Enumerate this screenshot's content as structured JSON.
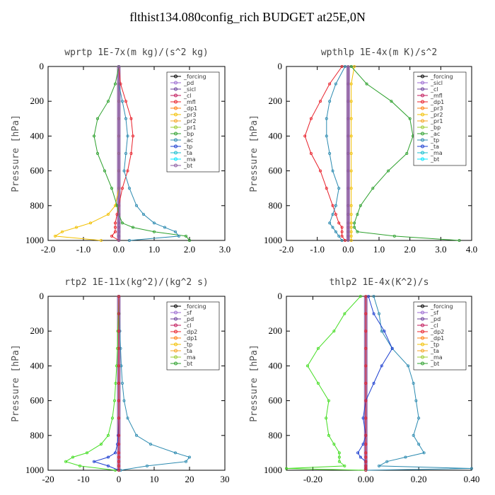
{
  "page": {
    "title": "flthist134.080config_rich  BUDGET at25E,0N"
  },
  "chart_data": [
    {
      "type": "line",
      "title": "wprtp  1E-7x(m kg)/(s^2 kg)",
      "ylabel": "Pressure [hPa]",
      "xlim": [
        -2.0,
        3.0
      ],
      "ylim": [
        1000,
        0
      ],
      "xticks": [
        "-2.0",
        "-1.0",
        "0.0",
        "1.0",
        "2.0",
        "3.0"
      ],
      "yticks": [
        "0",
        "200",
        "400",
        "600",
        "800",
        "1000"
      ],
      "legend": [
        "_forcing",
        "_pd",
        "_sicl",
        "_cl",
        "_mfl",
        "_dp1",
        "_pr3",
        "_pr2",
        "_pr1",
        "_bp",
        "_ac",
        "_tp",
        "_ta",
        "_ma",
        "_bt"
      ],
      "pressure": [
        0,
        100,
        200,
        300,
        400,
        500,
        600,
        700,
        800,
        850,
        900,
        925,
        950,
        975,
        1000
      ],
      "series": [
        {
          "name": "_dp1",
          "color": "#e8202a",
          "values": [
            0.0,
            0.05,
            0.2,
            0.35,
            0.4,
            0.35,
            0.25,
            0.1,
            0.0,
            -0.05,
            -0.1,
            -0.1,
            -0.1,
            -0.2,
            0.0
          ]
        },
        {
          "name": "_pr1",
          "color": "#f2c000",
          "values": [
            0.0,
            0.0,
            0.0,
            0.0,
            0.0,
            0.0,
            0.0,
            0.0,
            -0.1,
            -0.3,
            -0.8,
            -1.2,
            -1.6,
            -1.8,
            -0.5
          ]
        },
        {
          "name": "_ac",
          "color": "#2ca02c",
          "values": [
            0.0,
            -0.1,
            -0.3,
            -0.6,
            -0.7,
            -0.6,
            -0.4,
            -0.2,
            -0.05,
            0.0,
            0.1,
            0.4,
            1.0,
            1.9,
            2.0
          ]
        },
        {
          "name": "_tp",
          "color": "#2b8ab0",
          "values": [
            0.0,
            0.0,
            0.1,
            0.2,
            0.25,
            0.2,
            0.15,
            0.3,
            0.5,
            0.7,
            1.0,
            1.3,
            1.6,
            1.7,
            0.3
          ]
        },
        {
          "name": "_bt",
          "color": "#8b5aa0",
          "values": [
            0,
            0,
            0,
            0,
            0,
            0,
            0,
            0,
            0,
            0,
            0,
            0,
            0,
            0,
            0
          ]
        }
      ]
    },
    {
      "type": "line",
      "title": "wpthlp  1E-4x(m K)/s^2",
      "ylabel": "Pressure [hPa]",
      "xlim": [
        -2.0,
        4.0
      ],
      "ylim": [
        1000,
        0
      ],
      "xticks": [
        "-2.0",
        "-1.0",
        "0.0",
        "1.0",
        "2.0",
        "3.0",
        "4.0"
      ],
      "yticks": [
        "0",
        "200",
        "400",
        "600",
        "800",
        "1000"
      ],
      "legend": [
        "_forcing",
        "_sicl",
        "_cl",
        "_mfl",
        "_dp1",
        "_pr3",
        "_pr2",
        "_pr1",
        "_bp",
        "_ac",
        "_tp",
        "_ta",
        "_ma",
        "_bt"
      ],
      "pressure": [
        0,
        100,
        200,
        300,
        400,
        500,
        600,
        700,
        800,
        850,
        900,
        925,
        950,
        975,
        1000
      ],
      "series": [
        {
          "name": "_dp1",
          "color": "#e8202a",
          "values": [
            -0.2,
            -0.6,
            -0.9,
            -1.2,
            -1.4,
            -1.2,
            -0.9,
            -0.7,
            -0.5,
            -0.4,
            -0.3,
            -0.2,
            -0.2,
            -0.2,
            -0.1
          ]
        },
        {
          "name": "_pr1",
          "color": "#f2c000",
          "values": [
            0.2,
            0.1,
            0.1,
            0.1,
            0.1,
            0.1,
            0.1,
            0.1,
            0.1,
            0.1,
            0.1,
            0.1,
            0.1,
            0.1,
            0.1
          ]
        },
        {
          "name": "_ac",
          "color": "#2ca02c",
          "values": [
            0.1,
            0.6,
            1.4,
            2.0,
            2.1,
            1.9,
            1.3,
            0.8,
            0.4,
            0.3,
            0.2,
            0.2,
            0.3,
            1.5,
            3.6
          ]
        },
        {
          "name": "_tp",
          "color": "#2b8ab0",
          "values": [
            -0.1,
            -0.4,
            -0.6,
            -0.7,
            -0.7,
            -0.6,
            -0.5,
            -0.3,
            -0.4,
            -0.5,
            -0.6,
            -0.5,
            -0.4,
            -0.3,
            -0.2
          ]
        },
        {
          "name": "_bt",
          "color": "#8b5aa0",
          "values": [
            0,
            0,
            0,
            0,
            0,
            0,
            0,
            0,
            0,
            0,
            0,
            0,
            0,
            0,
            0
          ]
        }
      ]
    },
    {
      "type": "line",
      "title": "rtp2  1E-11x(kg^2)/(kg^2 s)",
      "ylabel": "Pressure [hPa]",
      "xlim": [
        -20,
        30
      ],
      "ylim": [
        1000,
        0
      ],
      "xticks": [
        "-20",
        "-10",
        "0",
        "10",
        "20",
        "30"
      ],
      "yticks": [
        "0",
        "200",
        "400",
        "600",
        "800",
        "1000"
      ],
      "legend": [
        "_forcing",
        "_sf",
        "_pd",
        "_cl",
        "_dp2",
        "_dp1",
        "_tp",
        "_ta",
        "_ma",
        "_bt"
      ],
      "pressure": [
        0,
        100,
        200,
        300,
        400,
        500,
        600,
        700,
        800,
        850,
        900,
        925,
        950,
        975,
        1000
      ],
      "series": [
        {
          "name": "_dp1",
          "color": "#44dd22",
          "values": [
            0,
            -0.1,
            -0.3,
            -0.4,
            -0.6,
            -0.9,
            -1.2,
            -1.8,
            -3.0,
            -5.0,
            -9.0,
            -13.0,
            -15.0,
            -11.0,
            -1.0
          ]
        },
        {
          "name": "_tp",
          "color": "#2b8ab0",
          "values": [
            0,
            0.1,
            0.3,
            0.5,
            0.7,
            1.0,
            1.5,
            2.5,
            5.0,
            9.0,
            16.0,
            20.0,
            19.0,
            8.0,
            0.5
          ]
        },
        {
          "name": "_ta",
          "color": "#1d3fd0",
          "values": [
            0,
            0,
            0,
            0,
            0,
            0,
            0,
            0,
            -0.2,
            -0.4,
            -1.0,
            -3.0,
            -7.0,
            -3.0,
            0
          ]
        },
        {
          "name": "_forcing",
          "color": "#e8202a",
          "values": [
            0,
            0,
            0,
            0,
            0,
            0,
            0,
            0,
            0,
            0,
            0,
            0,
            0,
            0,
            0
          ]
        }
      ]
    },
    {
      "type": "line",
      "title": "thlp2  1E-4x(K^2)/s",
      "ylabel": "Pressure [hPa]",
      "xlim": [
        -0.3,
        0.4
      ],
      "ylim": [
        1000,
        0
      ],
      "xticks": [
        "-0.20",
        "0.00",
        "0.20",
        "0.40"
      ],
      "yticks": [
        "0",
        "200",
        "400",
        "600",
        "800",
        "1000"
      ],
      "legend": [
        "_forcing",
        "_sf",
        "_pd",
        "_cl",
        "_dp2",
        "_dp1",
        "_tp",
        "_ta",
        "_ma",
        "_bt"
      ],
      "pressure": [
        0,
        100,
        200,
        300,
        400,
        500,
        600,
        700,
        800,
        850,
        900,
        925,
        950,
        975,
        990,
        1000
      ],
      "series": [
        {
          "name": "_dp1",
          "color": "#44dd22",
          "values": [
            -0.02,
            -0.08,
            -0.12,
            -0.18,
            -0.22,
            -0.18,
            -0.14,
            -0.15,
            -0.14,
            -0.12,
            -0.1,
            -0.1,
            -0.1,
            -0.08,
            -0.3,
            0
          ]
        },
        {
          "name": "_tp",
          "color": "#2b8ab0",
          "values": [
            0.03,
            0.05,
            0.06,
            0.1,
            0.16,
            0.18,
            0.19,
            0.2,
            0.18,
            0.2,
            0.22,
            0.15,
            0.08,
            0.05,
            0.4,
            0
          ]
        },
        {
          "name": "_ta",
          "color": "#1d3fd0",
          "values": [
            0.01,
            0.03,
            0.07,
            0.1,
            0.06,
            0.03,
            0.0,
            -0.01,
            0.0,
            -0.01,
            -0.03,
            -0.02,
            0.0,
            0.0,
            0.0,
            0
          ]
        },
        {
          "name": "_forcing",
          "color": "#e8202a",
          "values": [
            0,
            0,
            0,
            0,
            0,
            0,
            0,
            0,
            0,
            0,
            0,
            0,
            0,
            0,
            0,
            0
          ]
        }
      ]
    }
  ]
}
